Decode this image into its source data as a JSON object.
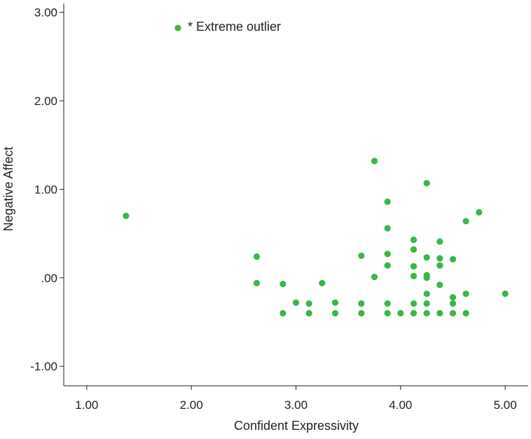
{
  "chart_data": {
    "type": "scatter",
    "title": "",
    "xlabel": "Confident Expressivity",
    "ylabel": "Negative Affect",
    "xlim": [
      0.78,
      5.22
    ],
    "ylim": [
      -1.22,
      3.1
    ],
    "x_ticks": [
      "1.00",
      "2.00",
      "3.00",
      "4.00",
      "5.00"
    ],
    "y_ticks": [
      "-1.00",
      ".00",
      "1.00",
      "2.00",
      "3.00"
    ],
    "x_tick_values": [
      1,
      2,
      3,
      4,
      5
    ],
    "y_tick_values": [
      -1,
      0,
      1,
      2,
      3
    ],
    "grid": false,
    "legend_position": "top-left",
    "marker_color": "#3cb54a",
    "series": [
      {
        "name": "* Extreme outlier",
        "points": [
          {
            "x": 1.375,
            "y": 0.7
          },
          {
            "x": 2.625,
            "y": 0.24
          },
          {
            "x": 2.625,
            "y": -0.06
          },
          {
            "x": 2.875,
            "y": -0.07
          },
          {
            "x": 2.875,
            "y": -0.4
          },
          {
            "x": 3.0,
            "y": -0.28
          },
          {
            "x": 3.125,
            "y": -0.29
          },
          {
            "x": 3.125,
            "y": -0.4
          },
          {
            "x": 3.25,
            "y": -0.06
          },
          {
            "x": 3.375,
            "y": -0.28
          },
          {
            "x": 3.375,
            "y": -0.4
          },
          {
            "x": 3.625,
            "y": 0.25
          },
          {
            "x": 3.625,
            "y": -0.29
          },
          {
            "x": 3.625,
            "y": -0.4
          },
          {
            "x": 3.75,
            "y": 1.32
          },
          {
            "x": 3.75,
            "y": 0.01
          },
          {
            "x": 3.875,
            "y": 0.86
          },
          {
            "x": 3.875,
            "y": 0.56
          },
          {
            "x": 3.875,
            "y": 0.27
          },
          {
            "x": 3.875,
            "y": 0.14
          },
          {
            "x": 3.875,
            "y": -0.29
          },
          {
            "x": 3.875,
            "y": -0.4
          },
          {
            "x": 4.0,
            "y": -0.4
          },
          {
            "x": 4.125,
            "y": 0.43
          },
          {
            "x": 4.125,
            "y": 0.32
          },
          {
            "x": 4.125,
            "y": 0.13
          },
          {
            "x": 4.125,
            "y": 0.02
          },
          {
            "x": 4.125,
            "y": -0.29
          },
          {
            "x": 4.125,
            "y": -0.4
          },
          {
            "x": 4.25,
            "y": 1.07
          },
          {
            "x": 4.25,
            "y": 0.23
          },
          {
            "x": 4.25,
            "y": 0.03
          },
          {
            "x": 4.25,
            "y": 0.0
          },
          {
            "x": 4.25,
            "y": -0.18
          },
          {
            "x": 4.25,
            "y": -0.29
          },
          {
            "x": 4.25,
            "y": -0.4
          },
          {
            "x": 4.375,
            "y": 0.41
          },
          {
            "x": 4.375,
            "y": 0.22
          },
          {
            "x": 4.375,
            "y": 0.14
          },
          {
            "x": 4.375,
            "y": -0.08
          },
          {
            "x": 4.375,
            "y": -0.4
          },
          {
            "x": 4.5,
            "y": 0.21
          },
          {
            "x": 4.5,
            "y": -0.22
          },
          {
            "x": 4.5,
            "y": -0.29
          },
          {
            "x": 4.5,
            "y": -0.4
          },
          {
            "x": 4.625,
            "y": 0.64
          },
          {
            "x": 4.625,
            "y": -0.18
          },
          {
            "x": 4.625,
            "y": -0.4
          },
          {
            "x": 4.75,
            "y": 0.74
          },
          {
            "x": 5.0,
            "y": -0.18
          }
        ]
      }
    ]
  }
}
